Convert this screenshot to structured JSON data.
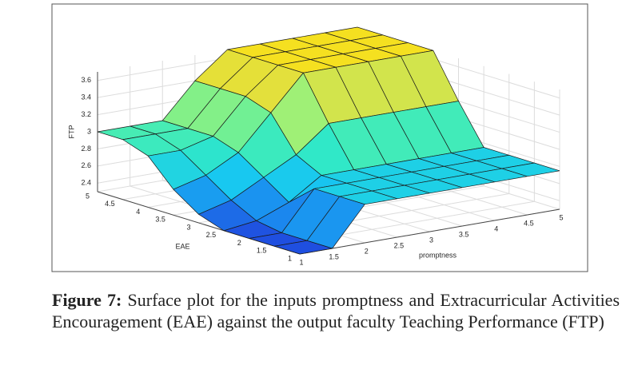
{
  "chart_data": {
    "type": "surface",
    "xlabel": "promptness",
    "ylabel": "EAE",
    "zlabel": "FTP",
    "x": [
      1,
      1.5,
      2,
      2.5,
      3,
      3.5,
      4,
      4.5,
      5
    ],
    "y": [
      1,
      1.5,
      2,
      2.5,
      3,
      3.5,
      4,
      4.5,
      5
    ],
    "z": [
      [
        2.3,
        2.3,
        2.75,
        2.75,
        2.75,
        2.75,
        2.75,
        2.75,
        2.75
      ],
      [
        2.3,
        2.3,
        2.75,
        2.75,
        2.75,
        2.75,
        2.75,
        2.75,
        2.75
      ],
      [
        2.3,
        2.3,
        2.75,
        2.75,
        2.75,
        2.75,
        2.75,
        2.75,
        2.75
      ],
      [
        2.3,
        2.35,
        2.5,
        2.75,
        2.75,
        2.75,
        2.75,
        2.75,
        2.75
      ],
      [
        2.4,
        2.5,
        2.7,
        2.9,
        3.2,
        3.2,
        3.2,
        3.2,
        3.2
      ],
      [
        2.6,
        2.7,
        2.9,
        3.3,
        3.7,
        3.7,
        3.7,
        3.7,
        3.7
      ],
      [
        2.9,
        2.9,
        3.0,
        3.4,
        3.7,
        3.7,
        3.7,
        3.7,
        3.7
      ],
      [
        3.0,
        3.0,
        3.0,
        3.4,
        3.7,
        3.7,
        3.7,
        3.7,
        3.7
      ],
      [
        3.0,
        3.0,
        3.0,
        3.4,
        3.7,
        3.7,
        3.7,
        3.7,
        3.7
      ]
    ],
    "xlim": [
      1,
      5
    ],
    "ylim": [
      1,
      5
    ],
    "zlim": [
      2.3,
      3.7
    ],
    "xticks": [
      1,
      1.5,
      2,
      2.5,
      3,
      3.5,
      4,
      4.5,
      5
    ],
    "yticks": [
      1,
      1.5,
      2,
      2.5,
      3,
      3.5,
      4,
      4.5,
      5
    ],
    "zticks": [
      2.4,
      2.6,
      2.8,
      3,
      3.2,
      3.4,
      3.6
    ],
    "grid": true,
    "colormap": [
      "#1f4fe0",
      "#1a8ff0",
      "#18c8f0",
      "#30e8c8",
      "#5ef0a0",
      "#a8f070",
      "#e0e040",
      "#f5e020"
    ]
  },
  "figure": {
    "label": "Figure 7:",
    "caption": "Surface plot for the inputs promptness and Extracurricular Activities Encouragement (EAE) against the output faculty Teaching Performance (FTP)"
  }
}
